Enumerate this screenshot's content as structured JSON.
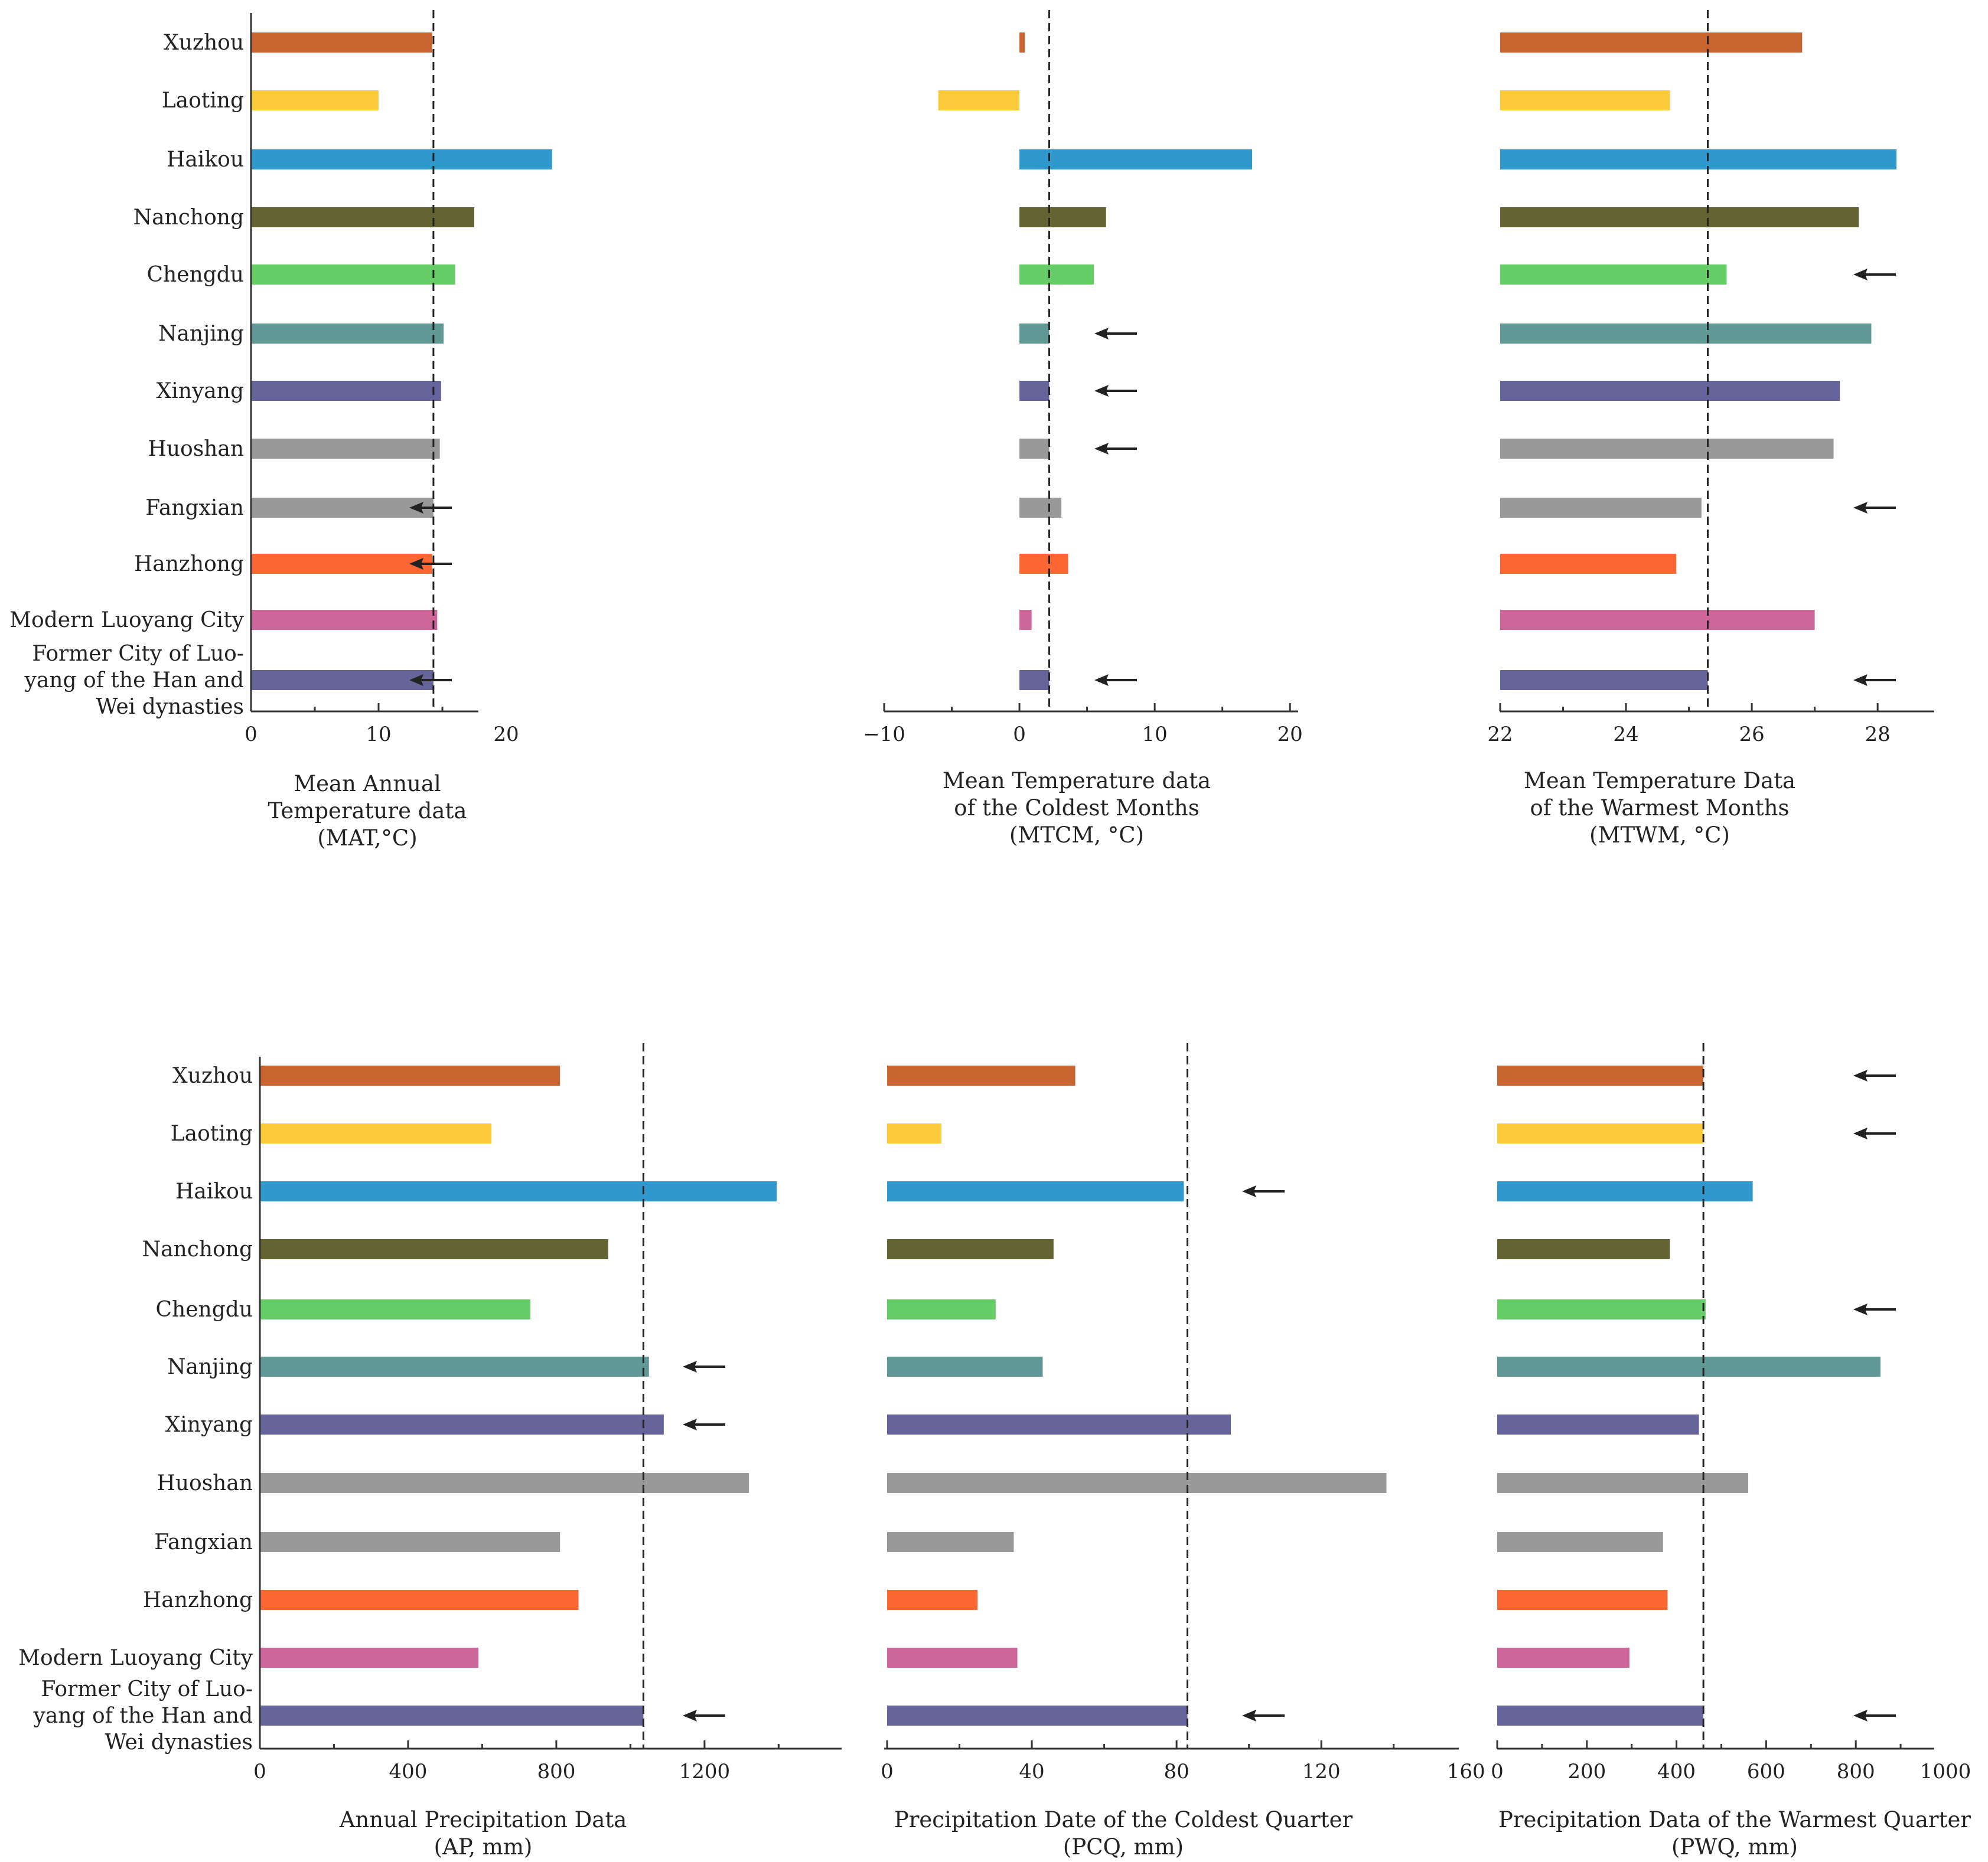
{
  "categories": [
    "Xuzhou",
    "Laoting",
    "Haikou",
    "Nanchong",
    "Chengdu",
    "Nanjing",
    "Xinyang",
    "Huoshan",
    "Fangxian",
    "Hanzhong",
    "Modern Luoyang City",
    "Former City of Luo- yang of the  Han and Wei dynasties"
  ],
  "category_label_lines": [
    [
      "Xuzhou"
    ],
    [
      "Laoting"
    ],
    [
      "Haikou"
    ],
    [
      "Nanchong"
    ],
    [
      "Chengdu"
    ],
    [
      "Nanjing"
    ],
    [
      "Xinyang"
    ],
    [
      "Huoshan"
    ],
    [
      "Fangxian"
    ],
    [
      "Hanzhong"
    ],
    [
      "Modern Luoyang City"
    ],
    [
      "Former City of Luo-",
      "yang of the  Han and",
      "Wei dynasties"
    ]
  ],
  "colors": [
    "#C8642F",
    "#FBCB3C",
    "#3198CE",
    "#646332",
    "#66CC66",
    "#609895",
    "#65649B",
    "#999999",
    "#999999",
    "#FC6633",
    "#CF6699",
    "#65649B"
  ],
  "chart_data": [
    {
      "id": "mat",
      "type": "bar",
      "orientation": "horizontal",
      "title_lines": [
        "Mean Annual",
        "Temperature  data",
        "(MAT,°C)"
      ],
      "values": [
        14.2,
        10.0,
        23.6,
        17.5,
        16.0,
        15.1,
        14.9,
        14.8,
        14.3,
        14.2,
        14.6,
        14.3
      ],
      "ticks": [
        0,
        10,
        20
      ],
      "tick_labels": [
        "0",
        "10",
        "20"
      ],
      "xlim": [
        0,
        25
      ],
      "reference": 14.3,
      "arrows": [
        8,
        9,
        11
      ]
    },
    {
      "id": "mtcm",
      "type": "bar",
      "orientation": "horizontal",
      "title_lines": [
        "Mean Temperature data",
        "of the Coldest Months",
        "(MTCM, °C)"
      ],
      "values": [
        0.4,
        -6.0,
        17.2,
        6.4,
        5.5,
        2.2,
        2.2,
        2.2,
        3.1,
        3.6,
        0.9,
        2.2
      ],
      "ticks": [
        -10,
        0,
        10,
        20
      ],
      "tick_labels": [
        "−10",
        "0",
        "10",
        "20"
      ],
      "xlim": [
        -10,
        22
      ],
      "reference": 2.2,
      "arrows": [
        5,
        6,
        7,
        11
      ]
    },
    {
      "id": "mtwm",
      "type": "bar",
      "orientation": "horizontal",
      "title_lines": [
        "Mean Temperature Data",
        "of the Warmest Months",
        "(MTWM, °C)"
      ],
      "values": [
        26.8,
        24.7,
        28.3,
        27.7,
        25.6,
        27.9,
        27.4,
        27.3,
        25.2,
        24.8,
        27.0,
        25.3
      ],
      "ticks": [
        22,
        24,
        26,
        28
      ],
      "tick_labels": [
        "22",
        "24",
        "26",
        "28"
      ],
      "xlim": [
        22,
        28.9
      ],
      "reference": 25.3,
      "arrows": [
        4,
        8,
        11
      ]
    },
    {
      "id": "ap",
      "type": "bar",
      "orientation": "horizontal",
      "title_lines": [
        "Annual Precipitation Data",
        "(AP, mm)"
      ],
      "values": [
        810,
        625,
        1395,
        940,
        730,
        1050,
        1090,
        1320,
        810,
        860,
        590,
        1035
      ],
      "ticks": [
        0,
        400,
        800,
        1200
      ],
      "tick_labels": [
        "0",
        "400",
        "800",
        "1200"
      ],
      "xlim": [
        0,
        1570
      ],
      "reference": 1035,
      "arrows": [
        5,
        6,
        11
      ]
    },
    {
      "id": "pcq",
      "type": "bar",
      "orientation": "horizontal",
      "title_lines": [
        "Precipitation Date of the Coldest Quarter",
        "(PCQ, mm)"
      ],
      "values": [
        52,
        15,
        82,
        46,
        30,
        43,
        95,
        138,
        35,
        25,
        36,
        83
      ],
      "ticks": [
        0,
        40,
        80,
        120,
        160
      ],
      "tick_labels": [
        "0",
        "40",
        "80",
        "120",
        "160"
      ],
      "xlim": [
        0,
        158
      ],
      "reference": 83,
      "arrows": [
        2,
        11
      ]
    },
    {
      "id": "pwq",
      "type": "bar",
      "orientation": "horizontal",
      "title_lines": [
        "Precipitation Data of the Warmest Quarter",
        "(PWQ, mm)"
      ],
      "values": [
        460,
        460,
        570,
        385,
        465,
        855,
        450,
        560,
        370,
        380,
        295,
        460
      ],
      "ticks": [
        0,
        200,
        400,
        600,
        800,
        1000
      ],
      "tick_labels": [
        "0",
        "200",
        "400",
        "600",
        "800",
        "1000"
      ],
      "xlim": [
        0,
        975
      ],
      "reference": 460,
      "arrows": [
        0,
        1,
        4,
        11
      ]
    }
  ]
}
